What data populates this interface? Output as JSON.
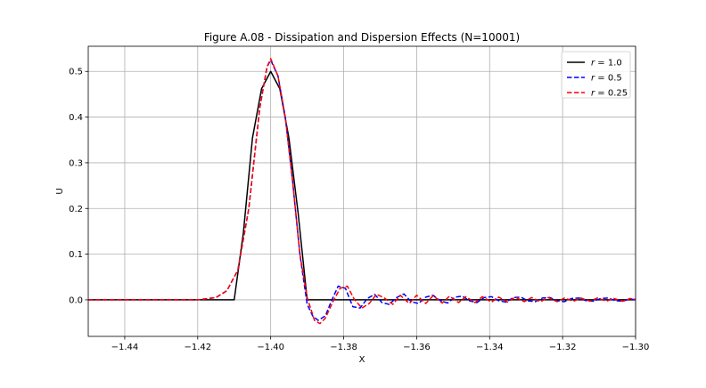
{
  "chart_data": {
    "type": "line",
    "title": "Figure A.08 - Dissipation and Dispersion Effects (N=10001)",
    "xlabel": "X",
    "ylabel": "U",
    "xlim": [
      -1.45,
      -1.3
    ],
    "ylim": [
      -0.08,
      0.555
    ],
    "xticks": [
      -1.44,
      -1.42,
      -1.4,
      -1.38,
      -1.36,
      -1.34,
      -1.32,
      -1.3
    ],
    "xtick_labels": [
      "−1.44",
      "−1.42",
      "−1.40",
      "−1.38",
      "−1.36",
      "−1.34",
      "−1.32",
      "−1.30"
    ],
    "yticks": [
      0.0,
      0.1,
      0.2,
      0.3,
      0.4,
      0.5
    ],
    "ytick_labels": [
      "0.0",
      "0.1",
      "0.2",
      "0.3",
      "0.4",
      "0.5"
    ],
    "grid": true,
    "legend_position": "top-right",
    "series": [
      {
        "name": "r = 1.0",
        "name_parts": [
          "r",
          " = 1.0"
        ],
        "color": "#000000",
        "style": "solid",
        "x": [
          -1.45,
          -1.41,
          -1.4075,
          -1.405,
          -1.4025,
          -1.4,
          -1.3975,
          -1.395,
          -1.3925,
          -1.39,
          -1.3,
          -1.29
        ],
        "y": [
          0.0,
          0.0,
          0.146,
          0.354,
          0.462,
          0.5,
          0.462,
          0.354,
          0.191,
          0.0,
          0.0,
          0.0
        ]
      },
      {
        "name": "r = 0.5",
        "name_parts": [
          "r",
          " = 0.5"
        ],
        "color": "#0000ff",
        "style": "dashed",
        "x": [
          -1.45,
          -1.42,
          -1.415,
          -1.412,
          -1.409,
          -1.406,
          -1.403,
          -1.401,
          -1.4,
          -1.398,
          -1.396,
          -1.394,
          -1.392,
          -1.39,
          -1.3885,
          -1.387,
          -1.385,
          -1.3835,
          -1.3815,
          -1.3795,
          -1.3775,
          -1.3755,
          -1.3735,
          -1.3715,
          -1.3695,
          -1.3675,
          -1.3655,
          -1.3635,
          -1.3615,
          -1.3595,
          -1.3575,
          -1.3555,
          -1.3535,
          -1.3515,
          -1.3495,
          -1.3475,
          -1.3455,
          -1.3435,
          -1.3415,
          -1.3395,
          -1.3375,
          -1.3355,
          -1.3335,
          -1.3315,
          -1.3295,
          -1.3275,
          -1.3255,
          -1.3235,
          -1.3215,
          -1.3195,
          -1.3175,
          -1.3155,
          -1.3135,
          -1.3115,
          -1.3095,
          -1.3075,
          -1.3055,
          -1.3035,
          -1.3015,
          -1.3
        ],
        "y": [
          0.0,
          0.0,
          0.005,
          0.02,
          0.065,
          0.2,
          0.42,
          0.51,
          0.525,
          0.49,
          0.4,
          0.26,
          0.1,
          -0.01,
          -0.035,
          -0.045,
          -0.035,
          -0.005,
          0.03,
          0.025,
          -0.015,
          -0.018,
          0.003,
          0.012,
          -0.006,
          -0.01,
          0.005,
          0.013,
          -0.004,
          -0.008,
          0.006,
          0.01,
          -0.002,
          -0.007,
          0.006,
          0.008,
          -0.002,
          -0.006,
          0.005,
          0.007,
          -0.002,
          -0.005,
          0.005,
          0.006,
          -0.002,
          -0.004,
          0.004,
          0.005,
          -0.002,
          -0.004,
          0.003,
          0.004,
          -0.002,
          -0.003,
          0.003,
          0.004,
          -0.002,
          -0.003,
          0.002,
          0.0
        ]
      },
      {
        "name": "r = 0.25",
        "name_parts": [
          "r",
          " = 0.25"
        ],
        "color": "#ff0000",
        "style": "dashed",
        "x": [
          -1.45,
          -1.42,
          -1.415,
          -1.412,
          -1.409,
          -1.406,
          -1.403,
          -1.401,
          -1.4,
          -1.398,
          -1.396,
          -1.394,
          -1.392,
          -1.39,
          -1.388,
          -1.3865,
          -1.385,
          -1.383,
          -1.381,
          -1.379,
          -1.377,
          -1.375,
          -1.373,
          -1.371,
          -1.369,
          -1.3665,
          -1.3645,
          -1.362,
          -1.36,
          -1.3575,
          -1.3555,
          -1.353,
          -1.351,
          -1.3485,
          -1.3465,
          -1.344,
          -1.342,
          -1.3395,
          -1.3375,
          -1.335,
          -1.333,
          -1.3305,
          -1.3285,
          -1.326,
          -1.324,
          -1.3215,
          -1.3195,
          -1.317,
          -1.315,
          -1.3125,
          -1.3105,
          -1.308,
          -1.306,
          -1.3035,
          -1.3015,
          -1.3
        ],
        "y": [
          0.0,
          0.0,
          0.005,
          0.02,
          0.065,
          0.2,
          0.42,
          0.51,
          0.528,
          0.49,
          0.4,
          0.26,
          0.1,
          0.005,
          -0.045,
          -0.052,
          -0.04,
          -0.005,
          0.025,
          0.03,
          0.0,
          -0.018,
          -0.008,
          0.012,
          0.005,
          -0.01,
          0.01,
          -0.008,
          0.01,
          -0.008,
          0.009,
          -0.007,
          0.008,
          -0.006,
          0.007,
          -0.006,
          0.007,
          -0.005,
          0.006,
          -0.005,
          0.006,
          -0.004,
          0.005,
          -0.004,
          0.005,
          -0.004,
          0.004,
          -0.003,
          0.004,
          -0.003,
          0.004,
          -0.003,
          0.003,
          -0.003,
          0.003,
          0.001
        ]
      }
    ]
  }
}
